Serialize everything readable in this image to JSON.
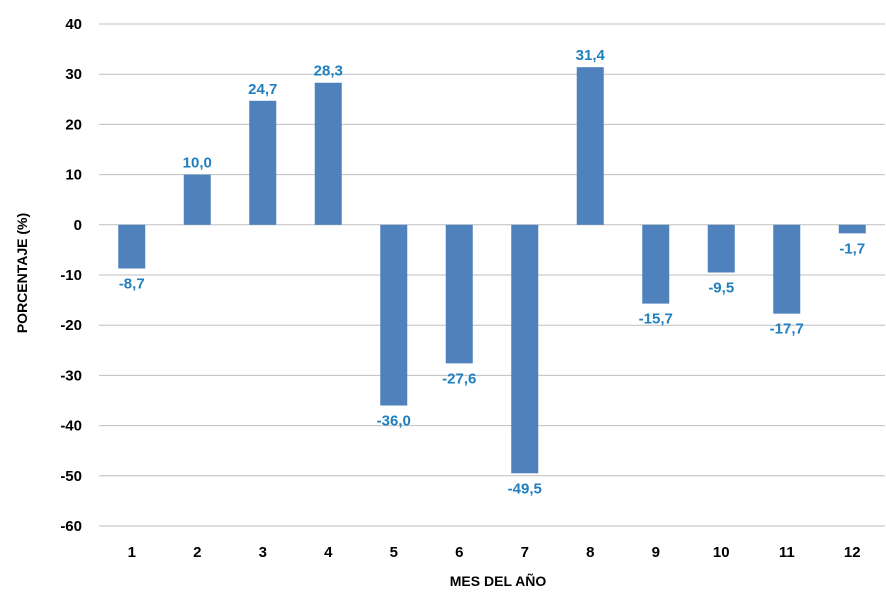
{
  "chart_data": {
    "type": "bar",
    "title": "",
    "xlabel": "MES DEL AÑO",
    "ylabel": "PORCENTAJE (%)",
    "categories": [
      "1",
      "2",
      "3",
      "4",
      "5",
      "6",
      "7",
      "8",
      "9",
      "10",
      "11",
      "12"
    ],
    "values": [
      -8.7,
      10.0,
      24.7,
      28.3,
      -36.0,
      -27.6,
      -49.5,
      31.4,
      -15.7,
      -9.5,
      -17.7,
      -1.7
    ],
    "value_labels": [
      "-8,7",
      "10,0",
      "24,7",
      "28,3",
      "-36,0",
      "-27,6",
      "-49,5",
      "31,4",
      "-15,7",
      "-9,5",
      "-17,7",
      "-1,7"
    ],
    "ylim": [
      -60,
      40
    ],
    "yticks": [
      40,
      30,
      20,
      10,
      0,
      -10,
      -20,
      -30,
      -40,
      -50,
      -60
    ],
    "grid": true,
    "legend": "none",
    "colors": {
      "bar": "#4f81bd",
      "data_label": "#1f7fbf",
      "grid": "#bfbfbf"
    }
  }
}
